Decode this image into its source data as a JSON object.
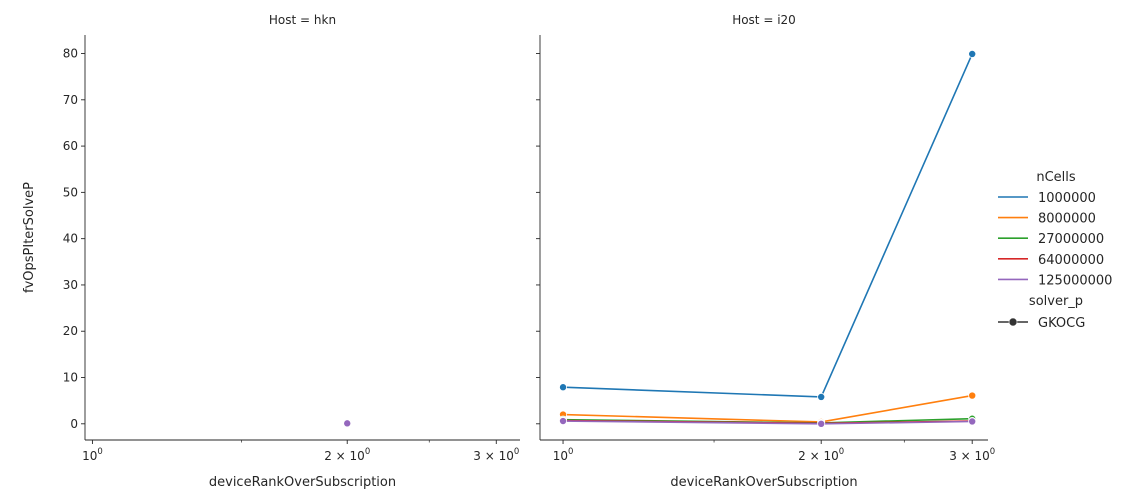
{
  "chart_data": {
    "type": "line",
    "ylabel": "fvOpsPIterSolveP",
    "xlabel": "deviceRankOverSubscription",
    "x_scale": "log",
    "ylim": [
      -3.5,
      84
    ],
    "yticks": [
      0,
      10,
      20,
      30,
      40,
      50,
      60,
      70,
      80
    ],
    "legend": {
      "placement": "right",
      "hue_title": "nCells",
      "style_title": "solver_p",
      "style_entries": [
        {
          "label": "GKOCG",
          "marker": "circle"
        }
      ]
    },
    "panels": [
      {
        "title": "Host = hkn",
        "xlim": [
          0.98,
          3.2
        ],
        "xticks": [
          {
            "value": 1,
            "base": "10",
            "exp": "0"
          },
          {
            "value": 2,
            "base": "2 × 10",
            "exp": "0"
          },
          {
            "value": 3,
            "base": "3 × 10",
            "exp": "0"
          }
        ],
        "series": [
          {
            "name": "125000000",
            "x": [
              2
            ],
            "y": [
              0.1
            ]
          }
        ]
      },
      {
        "title": "Host = i20",
        "xlim": [
          0.94,
          3.13
        ],
        "xticks": [
          {
            "value": 1,
            "base": "10",
            "exp": "0"
          },
          {
            "value": 2,
            "base": "2 × 10",
            "exp": "0"
          },
          {
            "value": 3,
            "base": "3 × 10",
            "exp": "0"
          }
        ],
        "series": [
          {
            "name": "1000000",
            "x": [
              1,
              2,
              3
            ],
            "y": [
              7.9,
              5.8,
              79.9
            ]
          },
          {
            "name": "8000000",
            "x": [
              1,
              2,
              3
            ],
            "y": [
              2.0,
              0.4,
              6.1
            ]
          },
          {
            "name": "27000000",
            "x": [
              1,
              2,
              3
            ],
            "y": [
              0.9,
              0.2,
              1.1
            ]
          },
          {
            "name": "64000000",
            "x": [
              1,
              2,
              3
            ],
            "y": [
              0.7,
              0.1,
              0.6
            ]
          },
          {
            "name": "125000000",
            "x": [
              1,
              2,
              3
            ],
            "y": [
              0.6,
              0.0,
              0.5
            ]
          }
        ]
      }
    ],
    "hue_entries": [
      {
        "name": "1000000",
        "color": "#1f77b4"
      },
      {
        "name": "8000000",
        "color": "#ff7f0e"
      },
      {
        "name": "27000000",
        "color": "#2ca02c"
      },
      {
        "name": "64000000",
        "color": "#d62728"
      },
      {
        "name": "125000000",
        "color": "#9467bd"
      }
    ]
  }
}
